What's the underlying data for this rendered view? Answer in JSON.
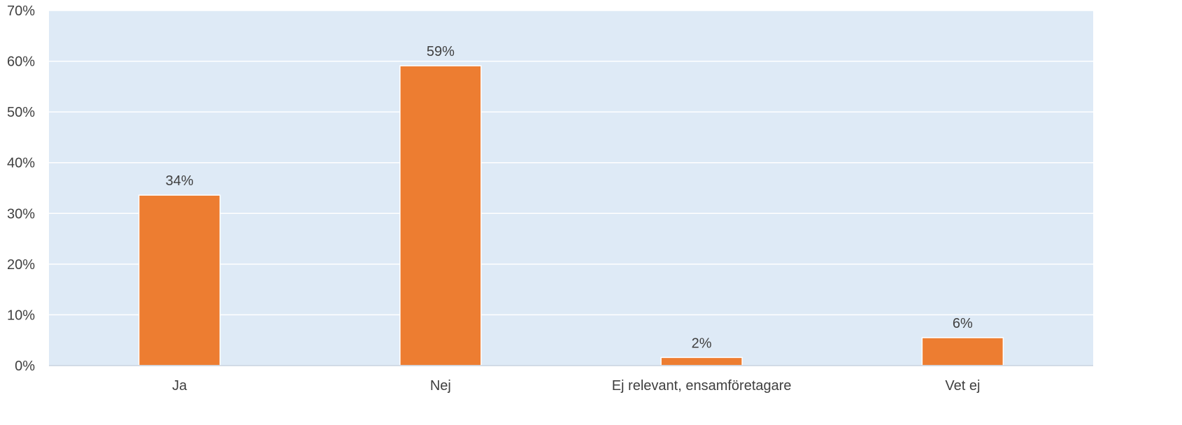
{
  "chart_data": {
    "type": "bar",
    "categories": [
      "Ja",
      "Nej",
      "Ej relevant, ensamföretagare",
      "Vet ej"
    ],
    "values": [
      33.6,
      59.1,
      1.6,
      5.5
    ],
    "data_labels": [
      "34%",
      "59%",
      "2%",
      "6%"
    ],
    "ylim": [
      0,
      70
    ],
    "yticks": [
      0,
      10,
      20,
      30,
      40,
      50,
      60,
      70
    ],
    "ytick_labels": [
      "0%",
      "10%",
      "20%",
      "30%",
      "40%",
      "50%",
      "60%",
      "70%"
    ],
    "grid": true,
    "legend": "none",
    "colors": {
      "bar": "#ED7D31",
      "plot_background": "#DEEAF6",
      "gridline": "#FFFFFF",
      "text": "#404040"
    }
  }
}
